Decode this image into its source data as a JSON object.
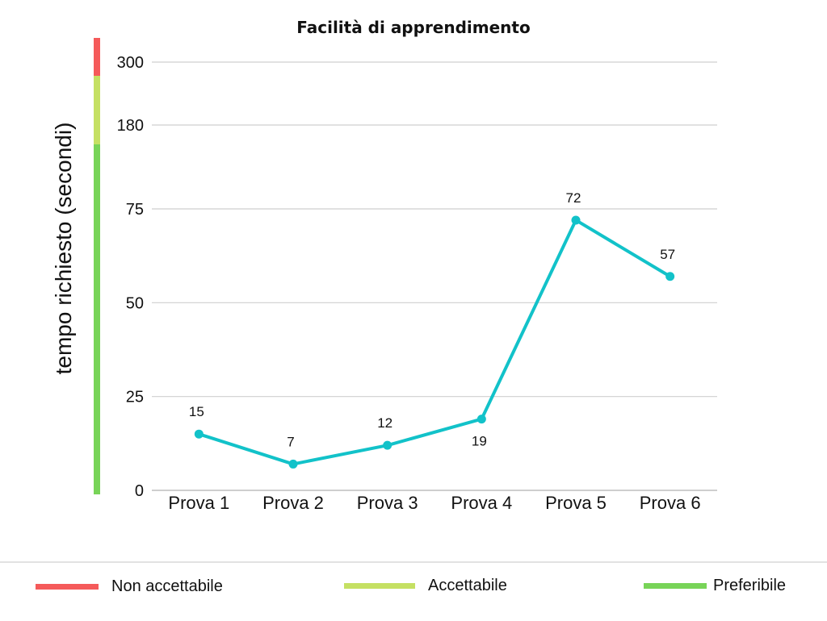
{
  "chart_data": {
    "type": "line",
    "title": "Facilità di apprendimento",
    "ylabel": "tempo richiesto (secondi)",
    "xlabel": "",
    "categories": [
      "Prova 1",
      "Prova 2",
      "Prova 3",
      "Prova 4",
      "Prova 5",
      "Prova 6"
    ],
    "values": [
      15,
      7,
      12,
      19,
      72,
      57
    ],
    "data_labels": [
      "15",
      "7",
      "12",
      "19",
      "72",
      "57"
    ],
    "yticks": [
      0,
      25,
      50,
      75,
      180,
      300
    ],
    "ytick_labels": [
      "0",
      "25",
      "50",
      "75",
      "180",
      "300"
    ],
    "ylim": [
      0,
      300
    ],
    "y_scale": "piecewise (0–75 linear, then 75–180 and 180–300 compressed)",
    "grid": true,
    "line_color": "#12c2c9",
    "zones": [
      {
        "label": "Non accettabile",
        "color": "#f55a5a",
        "range": [
          180,
          300
        ]
      },
      {
        "label": "Accettabile",
        "color": "#c5e063",
        "range": [
          75,
          180
        ]
      },
      {
        "label": "Preferibile",
        "color": "#78d458",
        "range": [
          0,
          75
        ]
      }
    ],
    "legend_position": "bottom"
  }
}
